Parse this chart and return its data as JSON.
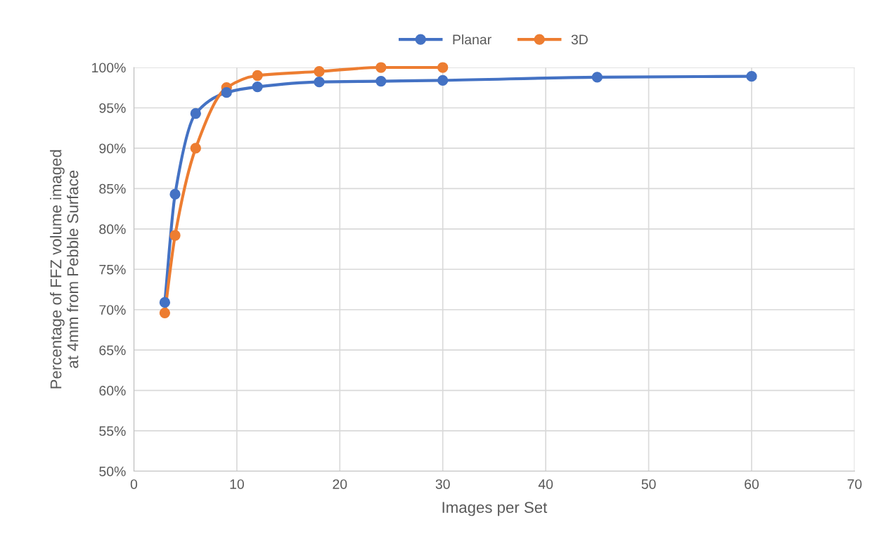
{
  "chart_data": {
    "type": "line",
    "xlabel": "Images per Set",
    "ylabel": "Percentage of FFZ volume imaged\nat 4mm from Pebble Surface",
    "series": [
      {
        "name": "Planar",
        "color": "#4472c4",
        "x": [
          3,
          4,
          6,
          9,
          12,
          18,
          24,
          30,
          45,
          60
        ],
        "values": [
          70.9,
          84.3,
          94.3,
          96.9,
          97.6,
          98.2,
          98.3,
          98.4,
          98.8,
          98.9
        ]
      },
      {
        "name": "3D",
        "color": "#ed7d31",
        "x": [
          3,
          4,
          6,
          9,
          12,
          18,
          24,
          30
        ],
        "values": [
          69.6,
          79.2,
          90.0,
          97.5,
          99.0,
          99.5,
          100.0,
          100.0
        ]
      }
    ],
    "xlim": [
      0,
      70
    ],
    "xticks": [
      0,
      10,
      20,
      30,
      40,
      50,
      60,
      70
    ],
    "ylim": [
      50,
      100
    ],
    "yticks": [
      {
        "value": 50,
        "label": "50%"
      },
      {
        "value": 55,
        "label": "55%"
      },
      {
        "value": 60,
        "label": "60%"
      },
      {
        "value": 65,
        "label": "65%"
      },
      {
        "value": 70,
        "label": "70%"
      },
      {
        "value": 75,
        "label": "75%"
      },
      {
        "value": 80,
        "label": "80%"
      },
      {
        "value": 85,
        "label": "85%"
      },
      {
        "value": 90,
        "label": "90%"
      },
      {
        "value": 95,
        "label": "95%"
      },
      {
        "value": 100,
        "label": "100%"
      }
    ],
    "grid": true,
    "legend": "top",
    "marker": "circle",
    "line_style": "solid"
  }
}
